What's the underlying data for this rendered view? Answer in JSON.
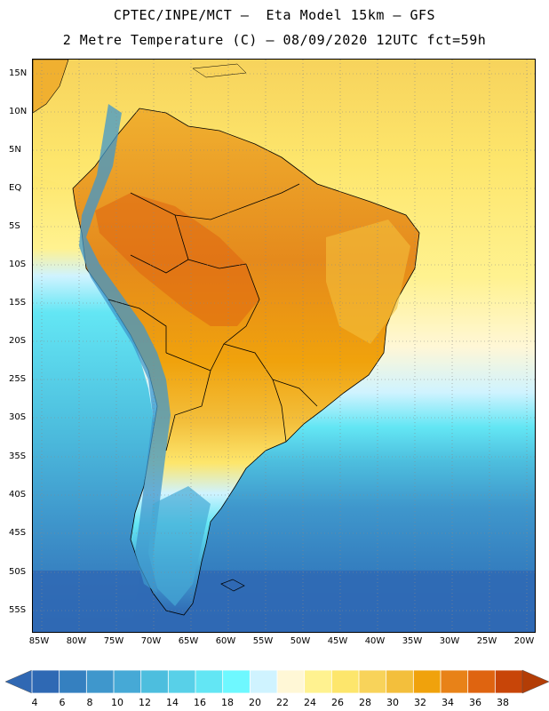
{
  "title_line1": "CPTEC/INPE/MCT —  Eta Model 15km — GFS",
  "title_line2": "2 Metre Temperature (C) — 08/09/2020 12UTC fct=59h",
  "lat_labels": [
    "15N",
    "10N",
    "5N",
    "EQ",
    "5S",
    "10S",
    "15S",
    "20S",
    "25S",
    "30S",
    "35S",
    "40S",
    "45S",
    "50S",
    "55S"
  ],
  "lon_labels": [
    "85W",
    "80W",
    "75W",
    "70W",
    "65W",
    "60W",
    "55W",
    "50W",
    "45W",
    "40W",
    "35W",
    "30W",
    "25W",
    "20W"
  ],
  "colorbar": {
    "labels": [
      "4",
      "6",
      "8",
      "10",
      "12",
      "14",
      "16",
      "18",
      "20",
      "22",
      "24",
      "26",
      "28",
      "30",
      "32",
      "34",
      "36",
      "38"
    ],
    "colors": [
      "#2f69b4",
      "#3580c0",
      "#3f97cc",
      "#46a9d6",
      "#4dbede",
      "#58d0e8",
      "#63e6f4",
      "#6ef8ff",
      "#cff3ff",
      "#fff7d6",
      "#fff290",
      "#fde66c",
      "#f8d35a",
      "#f3bf3c",
      "#f0a20c",
      "#e88218",
      "#df6410",
      "#c84508"
    ]
  },
  "colors": {
    "ocean_north": "#f7d35c",
    "ocean_south": "#2f69b4",
    "land_hot": "#e07a1c",
    "land_warm": "#f0b030",
    "andes_cold": "#3fa0d0",
    "border": "#000000"
  }
}
